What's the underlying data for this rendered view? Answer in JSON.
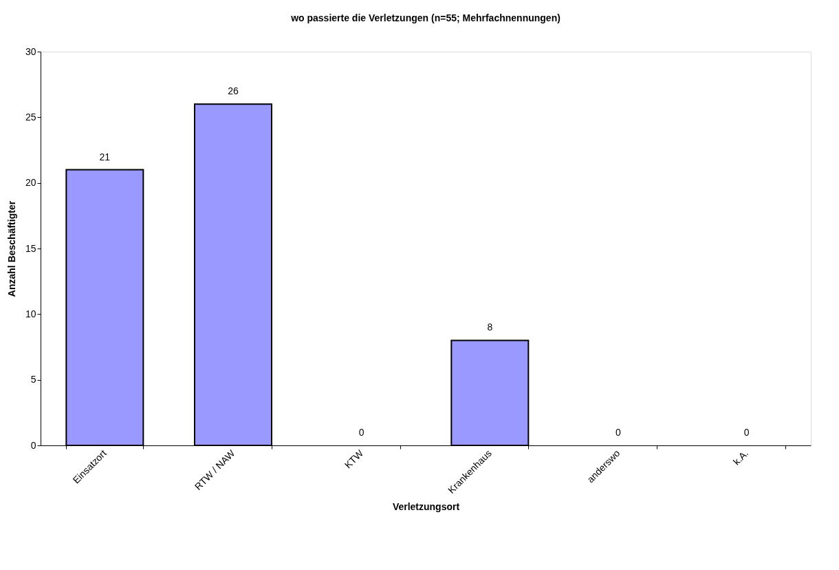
{
  "chart_data": {
    "type": "bar",
    "title": "wo passierte die Verletzungen (n=55; Mehrfachnennungen)",
    "xlabel": "Verletzungsort",
    "ylabel": "Anzahl Beschäftigter",
    "categories": [
      "Einsatzort",
      "RTW / NAW",
      "KTW",
      "Krankenhaus",
      "anderswo",
      "k.A."
    ],
    "values": [
      21,
      26,
      0,
      8,
      0,
      0
    ],
    "color": "#9999ff",
    "ylim": [
      0,
      30
    ],
    "yticks": [
      0,
      5,
      10,
      15,
      20,
      25,
      30
    ],
    "grid": false,
    "data_labels": true
  }
}
